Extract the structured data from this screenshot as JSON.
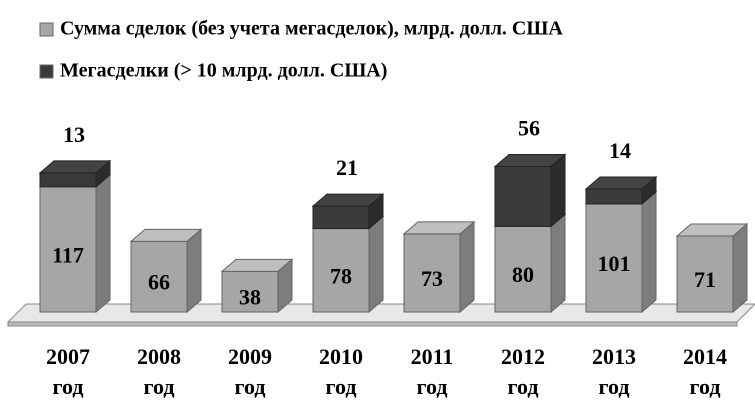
{
  "chart_data": {
    "type": "bar3d_stacked",
    "categories": [
      "2007 год",
      "2008 год",
      "2009 год",
      "2010 год",
      "2011 год",
      "2012 год",
      "2013 год",
      "2014 год"
    ],
    "series": [
      {
        "name": "Сумма сделок (без учета мегасделок), млрд. долл. США",
        "color": "#a6a6a6",
        "values": [
          117,
          66,
          38,
          78,
          73,
          80,
          101,
          71
        ]
      },
      {
        "name": "Мегасделки (> 10 млрд. долл. США)",
        "color": "#3a3a3a",
        "values": [
          13,
          null,
          null,
          21,
          null,
          56,
          14,
          null
        ]
      }
    ]
  }
}
